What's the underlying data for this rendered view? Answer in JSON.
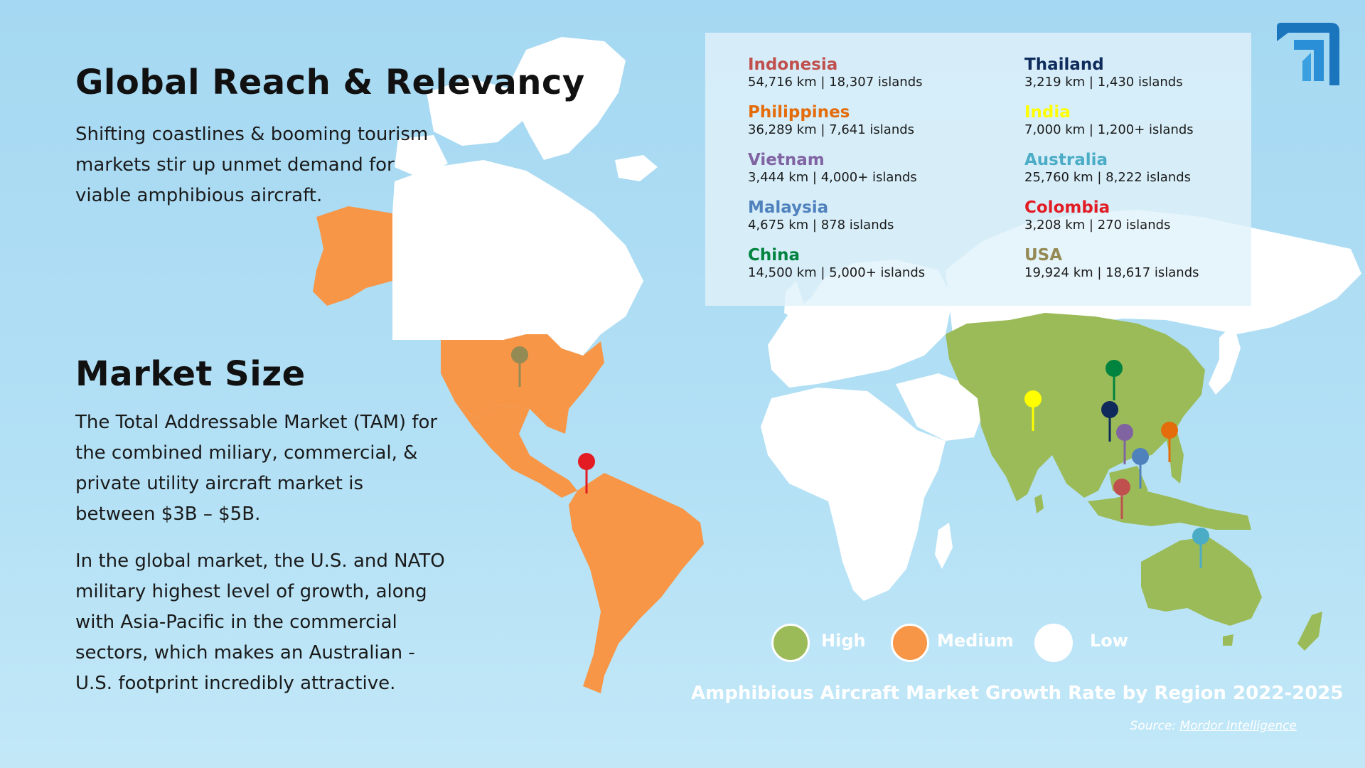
{
  "headings": {
    "global_reach": "Global Reach & Relevancy",
    "market_size": "Market Size"
  },
  "paragraphs": {
    "global_reach": "Shifting coastlines & booming tourism markets stir up unmet demand for viable amphibious aircraft.",
    "market_size_1": "The Total Addressable Market (TAM) for the combined miliary, commercial, & private utility aircraft market is between $3B – $5B.",
    "market_size_2": "In the global market, the U.S. and NATO military highest level of growth, along with Asia-Pacific in the commercial sectors, which makes an Australian - U.S. footprint incredibly attractive."
  },
  "countries": [
    {
      "name": "Indonesia",
      "stat": "54,716 km |  18,307 islands",
      "color": "#c0504d"
    },
    {
      "name": "Philippines",
      "stat": "36,289 km |  7,641 islands",
      "color": "#e46c0a"
    },
    {
      "name": "Vietnam",
      "stat": "3,444 km   |  4,000+ islands",
      "color": "#8064a2"
    },
    {
      "name": "Malaysia",
      "stat": "4,675 km   |  878 islands",
      "color": "#4f81bd"
    },
    {
      "name": "China",
      "stat": "14,500 km |  5,000+ islands",
      "color": "#00833e"
    },
    {
      "name": "Thailand",
      "stat": "3,219 km    |  1,430 islands",
      "color": "#0f2b5b"
    },
    {
      "name": "India",
      "stat": "7,000 km    |  1,200+ islands",
      "color": "#ffff00"
    },
    {
      "name": "Australia",
      "stat": "25,760 km |  8,222 islands",
      "color": "#4bacc6"
    },
    {
      "name": "Colombia",
      "stat": "3,208 km    |  270 islands",
      "color": "#e31b23"
    },
    {
      "name": "USA",
      "stat": "19,924 km | 18,617 islands",
      "color": "#948a54"
    }
  ],
  "legend": [
    {
      "label": "High",
      "color": "#9bbb59"
    },
    {
      "label": "Medium",
      "color": "#f79646"
    },
    {
      "label": "Low",
      "color": "#ffffff"
    }
  ],
  "caption": "Amphibious Aircraft Market Growth Rate by Region 2022-2025",
  "source": {
    "prefix": "Source: ",
    "link": "Mordor Intelligence"
  },
  "colors": {
    "high": "#9bbb59",
    "medium": "#f79646",
    "low": "#ffffff",
    "ocean": "#a5d8f2",
    "logo": "#1b75bc"
  },
  "icons": {
    "logo": "company-logo-icon",
    "pin": "map-pin-icon"
  }
}
